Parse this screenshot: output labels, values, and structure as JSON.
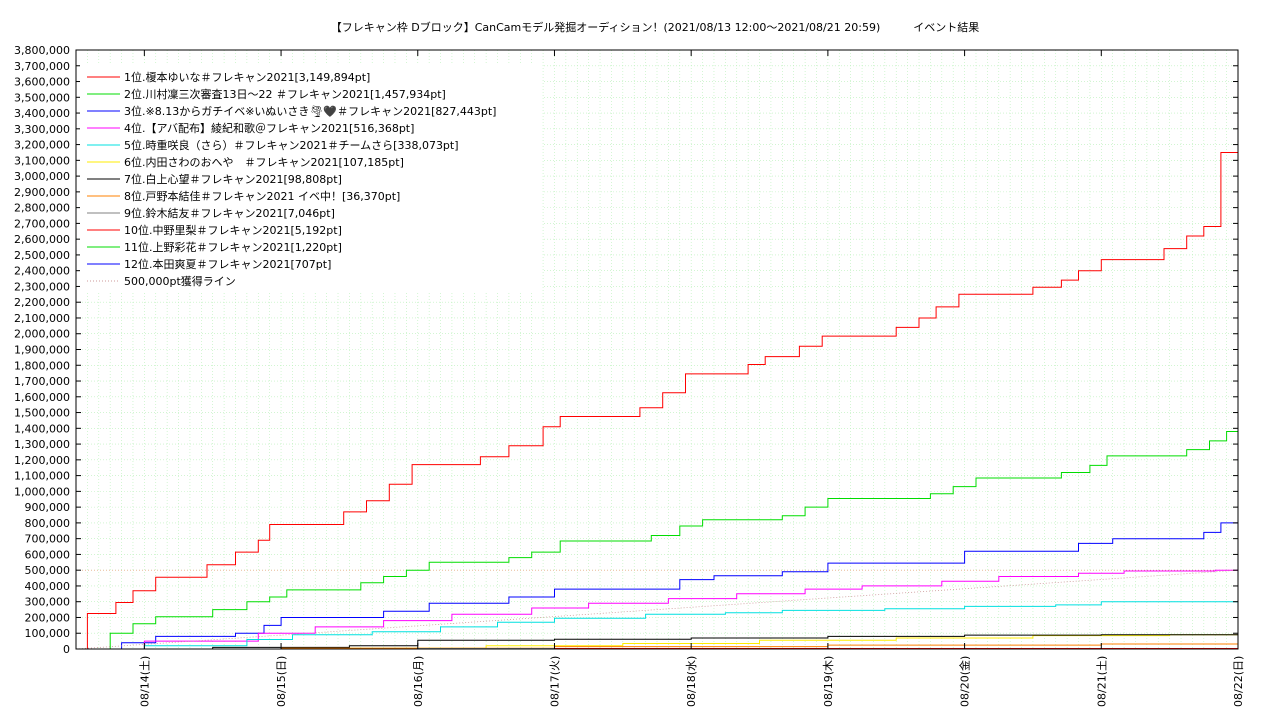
{
  "chart_data": {
    "type": "line",
    "title": "【フレキャン枠 Dブロック】CanCamモデル発掘オーディション！(2021/08/13 12:00～2021/08/21 20:59)　　　イベント結果",
    "xlabel": "",
    "ylabel": "",
    "ylim": [
      0,
      3800000
    ],
    "y_ticks": [
      0,
      100000,
      200000,
      300000,
      400000,
      500000,
      600000,
      700000,
      800000,
      900000,
      1000000,
      1100000,
      1200000,
      1300000,
      1400000,
      1500000,
      1600000,
      1700000,
      1800000,
      1900000,
      2000000,
      2100000,
      2200000,
      2300000,
      2400000,
      2500000,
      2600000,
      2700000,
      2800000,
      2900000,
      3000000,
      3100000,
      3200000,
      3300000,
      3400000,
      3500000,
      3600000,
      3700000,
      3800000
    ],
    "y_tick_labels": [
      "0",
      "100,000",
      "200,000",
      "300,000",
      "400,000",
      "500,000",
      "600,000",
      "700,000",
      "800,000",
      "900,000",
      "1,000,000",
      "1,100,000",
      "1,200,000",
      "1,300,000",
      "1,400,000",
      "1,500,000",
      "1,600,000",
      "1,700,000",
      "1,800,000",
      "1,900,000",
      "2,000,000",
      "2,100,000",
      "2,200,000",
      "2,300,000",
      "2,400,000",
      "2,500,000",
      "2,600,000",
      "2,700,000",
      "2,800,000",
      "2,900,000",
      "3,000,000",
      "3,100,000",
      "3,200,000",
      "3,300,000",
      "3,400,000",
      "3,500,000",
      "3,600,000",
      "3,700,000",
      "3,800,000"
    ],
    "xlim": [
      "2021-08-13 12:00",
      "2021-08-22 00:00"
    ],
    "x_ticks": [
      "2021-08-14 00:00",
      "2021-08-15 00:00",
      "2021-08-16 00:00",
      "2021-08-17 00:00",
      "2021-08-18 00:00",
      "2021-08-19 00:00",
      "2021-08-20 00:00",
      "2021-08-21 00:00",
      "2021-08-22 00:00"
    ],
    "x_tick_labels": [
      "08/14(土)",
      "08/15(日)",
      "08/16(月)",
      "08/17(火)",
      "08/18(水)",
      "08/19(木)",
      "08/20(金)",
      "08/21(土)",
      "08/22(日)"
    ],
    "grid": true,
    "legend_position": "top-left",
    "series": [
      {
        "name": "1位.榎本ゆいな＃フレキャン2021[3,149,894pt]",
        "color": "#ff0000",
        "points": [
          [
            "2021-08-13 12:00",
            0
          ],
          [
            "2021-08-13 14:00",
            225000
          ],
          [
            "2021-08-13 19:00",
            295000
          ],
          [
            "2021-08-13 22:00",
            370000
          ],
          [
            "2021-08-14 02:00",
            455000
          ],
          [
            "2021-08-14 10:00",
            455000
          ],
          [
            "2021-08-14 11:00",
            535000
          ],
          [
            "2021-08-14 16:00",
            615000
          ],
          [
            "2021-08-14 20:00",
            690000
          ],
          [
            "2021-08-14 22:00",
            790000
          ],
          [
            "2021-08-15 10:00",
            790000
          ],
          [
            "2021-08-15 11:00",
            870000
          ],
          [
            "2021-08-15 15:00",
            940000
          ],
          [
            "2021-08-15 19:00",
            1045000
          ],
          [
            "2021-08-15 23:00",
            1170000
          ],
          [
            "2021-08-16 10:00",
            1170000
          ],
          [
            "2021-08-16 11:00",
            1220000
          ],
          [
            "2021-08-16 16:00",
            1290000
          ],
          [
            "2021-08-16 22:00",
            1410000
          ],
          [
            "2021-08-17 01:00",
            1475000
          ],
          [
            "2021-08-17 14:00",
            1475000
          ],
          [
            "2021-08-17 15:00",
            1530000
          ],
          [
            "2021-08-17 19:00",
            1625000
          ],
          [
            "2021-08-17 23:00",
            1745000
          ],
          [
            "2021-08-18 09:00",
            1745000
          ],
          [
            "2021-08-18 10:00",
            1805000
          ],
          [
            "2021-08-18 13:00",
            1855000
          ],
          [
            "2021-08-18 19:00",
            1920000
          ],
          [
            "2021-08-18 23:00",
            1985000
          ],
          [
            "2021-08-19 10:00",
            1985000
          ],
          [
            "2021-08-19 12:00",
            2040000
          ],
          [
            "2021-08-19 16:00",
            2100000
          ],
          [
            "2021-08-19 19:00",
            2170000
          ],
          [
            "2021-08-19 23:00",
            2250000
          ],
          [
            "2021-08-20 11:00",
            2250000
          ],
          [
            "2021-08-20 12:00",
            2295000
          ],
          [
            "2021-08-20 17:00",
            2340000
          ],
          [
            "2021-08-20 20:00",
            2400000
          ],
          [
            "2021-08-21 00:00",
            2470000
          ],
          [
            "2021-08-21 10:00",
            2470000
          ],
          [
            "2021-08-21 11:00",
            2540000
          ],
          [
            "2021-08-21 15:00",
            2620000
          ],
          [
            "2021-08-21 18:00",
            2680000
          ],
          [
            "2021-08-21 20:30",
            2680000
          ],
          [
            "2021-08-21 21:00",
            3150000
          ],
          [
            "2021-08-22 00:00",
            3150000
          ]
        ]
      },
      {
        "name": "2位.川村凜三次審査13日〜22 ＃フレキャン2021[1,457,934pt]",
        "color": "#00dd00",
        "points": [
          [
            "2021-08-13 12:00",
            0
          ],
          [
            "2021-08-13 18:00",
            100000
          ],
          [
            "2021-08-13 22:00",
            160000
          ],
          [
            "2021-08-14 02:00",
            205000
          ],
          [
            "2021-08-14 10:00",
            205000
          ],
          [
            "2021-08-14 12:00",
            250000
          ],
          [
            "2021-08-14 18:00",
            300000
          ],
          [
            "2021-08-14 22:00",
            330000
          ],
          [
            "2021-08-15 01:00",
            375000
          ],
          [
            "2021-08-15 12:00",
            375000
          ],
          [
            "2021-08-15 14:00",
            420000
          ],
          [
            "2021-08-15 18:00",
            460000
          ],
          [
            "2021-08-15 22:00",
            500000
          ],
          [
            "2021-08-16 02:00",
            550000
          ],
          [
            "2021-08-16 12:00",
            550000
          ],
          [
            "2021-08-16 16:00",
            580000
          ],
          [
            "2021-08-16 20:00",
            615000
          ],
          [
            "2021-08-17 01:00",
            685000
          ],
          [
            "2021-08-17 14:00",
            685000
          ],
          [
            "2021-08-17 17:00",
            720000
          ],
          [
            "2021-08-17 22:00",
            780000
          ],
          [
            "2021-08-18 02:00",
            820000
          ],
          [
            "2021-08-18 12:00",
            820000
          ],
          [
            "2021-08-18 16:00",
            845000
          ],
          [
            "2021-08-18 20:00",
            900000
          ],
          [
            "2021-08-19 00:00",
            955000
          ],
          [
            "2021-08-19 13:00",
            955000
          ],
          [
            "2021-08-19 18:00",
            985000
          ],
          [
            "2021-08-19 22:00",
            1030000
          ],
          [
            "2021-08-20 02:00",
            1085000
          ],
          [
            "2021-08-20 12:00",
            1085000
          ],
          [
            "2021-08-20 17:00",
            1120000
          ],
          [
            "2021-08-20 22:00",
            1165000
          ],
          [
            "2021-08-21 01:00",
            1225000
          ],
          [
            "2021-08-21 12:00",
            1225000
          ],
          [
            "2021-08-21 15:00",
            1265000
          ],
          [
            "2021-08-21 19:00",
            1320000
          ],
          [
            "2021-08-21 22:00",
            1380000
          ],
          [
            "2021-08-22 00:00",
            1458000
          ]
        ]
      },
      {
        "name": "3位.※8.13からガチイベ※いぬいさき🌪🖤＃フレキャン2021[827,443pt]",
        "color": "#0000ff",
        "points": [
          [
            "2021-08-13 12:00",
            0
          ],
          [
            "2021-08-13 20:00",
            40000
          ],
          [
            "2021-08-14 02:00",
            80000
          ],
          [
            "2021-08-14 16:00",
            100000
          ],
          [
            "2021-08-14 21:00",
            150000
          ],
          [
            "2021-08-15 00:00",
            200000
          ],
          [
            "2021-08-15 12:00",
            200000
          ],
          [
            "2021-08-15 18:00",
            240000
          ],
          [
            "2021-08-16 02:00",
            290000
          ],
          [
            "2021-08-16 16:00",
            330000
          ],
          [
            "2021-08-17 00:00",
            380000
          ],
          [
            "2021-08-17 14:00",
            380000
          ],
          [
            "2021-08-17 22:00",
            440000
          ],
          [
            "2021-08-18 04:00",
            465000
          ],
          [
            "2021-08-18 16:00",
            490000
          ],
          [
            "2021-08-19 00:00",
            545000
          ],
          [
            "2021-08-19 14:00",
            545000
          ],
          [
            "2021-08-20 00:00",
            620000
          ],
          [
            "2021-08-20 12:00",
            620000
          ],
          [
            "2021-08-20 20:00",
            670000
          ],
          [
            "2021-08-21 02:00",
            700000
          ],
          [
            "2021-08-21 14:00",
            700000
          ],
          [
            "2021-08-21 18:00",
            740000
          ],
          [
            "2021-08-21 21:00",
            800000
          ],
          [
            "2021-08-22 00:00",
            828000
          ]
        ]
      },
      {
        "name": "4位.【アバ配布】綾紀和歌＠フレキャン2021[516,368pt]",
        "color": "#ff00ff",
        "points": [
          [
            "2021-08-13 12:00",
            0
          ],
          [
            "2021-08-14 00:00",
            50000
          ],
          [
            "2021-08-14 20:00",
            100000
          ],
          [
            "2021-08-15 06:00",
            140000
          ],
          [
            "2021-08-15 18:00",
            180000
          ],
          [
            "2021-08-16 06:00",
            220000
          ],
          [
            "2021-08-16 20:00",
            260000
          ],
          [
            "2021-08-17 06:00",
            290000
          ],
          [
            "2021-08-17 20:00",
            320000
          ],
          [
            "2021-08-18 08:00",
            350000
          ],
          [
            "2021-08-18 20:00",
            380000
          ],
          [
            "2021-08-19 06:00",
            400000
          ],
          [
            "2021-08-19 20:00",
            430000
          ],
          [
            "2021-08-20 06:00",
            460000
          ],
          [
            "2021-08-20 20:00",
            480000
          ],
          [
            "2021-08-21 04:00",
            495000
          ],
          [
            "2021-08-21 20:00",
            500000
          ],
          [
            "2021-08-22 00:00",
            516000
          ]
        ]
      },
      {
        "name": "5位.時重咲良（さら）＃フレキャン2021＃チームさら[338,073pt]",
        "color": "#00e0e0",
        "points": [
          [
            "2021-08-13 12:00",
            0
          ],
          [
            "2021-08-14 00:00",
            20000
          ],
          [
            "2021-08-14 18:00",
            60000
          ],
          [
            "2021-08-15 02:00",
            90000
          ],
          [
            "2021-08-15 16:00",
            110000
          ],
          [
            "2021-08-16 04:00",
            140000
          ],
          [
            "2021-08-16 14:00",
            170000
          ],
          [
            "2021-08-17 00:00",
            195000
          ],
          [
            "2021-08-17 16:00",
            220000
          ],
          [
            "2021-08-18 06:00",
            230000
          ],
          [
            "2021-08-18 16:00",
            245000
          ],
          [
            "2021-08-19 10:00",
            255000
          ],
          [
            "2021-08-20 00:00",
            270000
          ],
          [
            "2021-08-20 16:00",
            280000
          ],
          [
            "2021-08-21 00:00",
            300000
          ],
          [
            "2021-08-21 20:00",
            300000
          ],
          [
            "2021-08-22 00:00",
            338000
          ]
        ]
      },
      {
        "name": "6位.内田さわのおへや　＃フレキャン2021[107,185pt]",
        "color": "#ffee00",
        "points": [
          [
            "2021-08-13 12:00",
            0
          ],
          [
            "2021-08-15 00:00",
            5000
          ],
          [
            "2021-08-16 12:00",
            20000
          ],
          [
            "2021-08-17 12:00",
            35000
          ],
          [
            "2021-08-18 12:00",
            55000
          ],
          [
            "2021-08-19 12:00",
            70000
          ],
          [
            "2021-08-20 12:00",
            85000
          ],
          [
            "2021-08-21 12:00",
            90000
          ],
          [
            "2021-08-22 00:00",
            107000
          ]
        ]
      },
      {
        "name": "7位.白上心望＃フレキャン2021[98,808pt]",
        "color": "#000000",
        "points": [
          [
            "2021-08-13 12:00",
            0
          ],
          [
            "2021-08-14 12:00",
            10000
          ],
          [
            "2021-08-15 12:00",
            20000
          ],
          [
            "2021-08-16 00:00",
            55000
          ],
          [
            "2021-08-17 00:00",
            62000
          ],
          [
            "2021-08-18 00:00",
            70000
          ],
          [
            "2021-08-19 00:00",
            80000
          ],
          [
            "2021-08-20 00:00",
            88000
          ],
          [
            "2021-08-21 00:00",
            90000
          ],
          [
            "2021-08-22 00:00",
            99000
          ]
        ]
      },
      {
        "name": "8位.戸野本結佳＃フレキャン2021 イベ中！[36,370pt]",
        "color": "#ff8000",
        "points": [
          [
            "2021-08-13 12:00",
            0
          ],
          [
            "2021-08-15 00:00",
            5000
          ],
          [
            "2021-08-17 00:00",
            15000
          ],
          [
            "2021-08-19 00:00",
            25000
          ],
          [
            "2021-08-21 00:00",
            32000
          ],
          [
            "2021-08-22 00:00",
            36000
          ]
        ]
      },
      {
        "name": "9位.鈴木結友＃フレキャン2021[7,046pt]",
        "color": "#808080",
        "points": [
          [
            "2021-08-13 12:00",
            0
          ],
          [
            "2021-08-16 00:00",
            3000
          ],
          [
            "2021-08-22 00:00",
            7000
          ]
        ]
      },
      {
        "name": "10位.中野里梨＃フレキャン2021[5,192pt]",
        "color": "#ff0000",
        "points": [
          [
            "2021-08-13 12:00",
            0
          ],
          [
            "2021-08-17 00:00",
            3000
          ],
          [
            "2021-08-22 00:00",
            5200
          ]
        ]
      },
      {
        "name": "11位.上野彩花＃フレキャン2021[1,220pt]",
        "color": "#00dd00",
        "points": [
          [
            "2021-08-13 12:00",
            0
          ],
          [
            "2021-08-22 00:00",
            1200
          ]
        ]
      },
      {
        "name": "12位.本田爽夏＃フレキャン2021[707pt]",
        "color": "#0000ff",
        "points": [
          [
            "2021-08-13 12:00",
            0
          ],
          [
            "2021-08-22 00:00",
            700
          ]
        ]
      },
      {
        "name": "500,000pt獲得ライン",
        "color": "#cc9999",
        "dashed": true,
        "points": [
          [
            "2021-08-13 12:00",
            0
          ],
          [
            "2021-08-22 00:00",
            500000
          ]
        ]
      }
    ]
  }
}
